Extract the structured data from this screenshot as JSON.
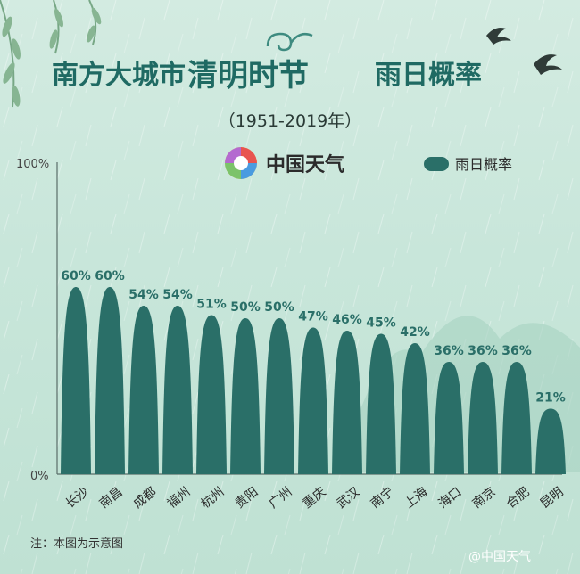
{
  "title_parts": {
    "a": "南方大城市",
    "b": "清明时节",
    "c": "雨日概率"
  },
  "subtitle": "（1951-2019年）",
  "brand": "中国天气",
  "legend_label": "雨日概率",
  "footnote": "注：本图为示意图",
  "watermark": "@中国天气",
  "colors": {
    "bar": "#2a6f68",
    "title": "#1f6a63",
    "label": "#2a6f68",
    "axis": "#5a6e69"
  },
  "chart_data": {
    "type": "bar",
    "categories": [
      "长沙",
      "南昌",
      "成都",
      "福州",
      "杭州",
      "贵阳",
      "广州",
      "重庆",
      "武汉",
      "南宁",
      "上海",
      "海口",
      "南京",
      "合肥",
      "昆明"
    ],
    "values": [
      60,
      60,
      54,
      54,
      51,
      50,
      50,
      47,
      46,
      45,
      42,
      36,
      36,
      36,
      21
    ],
    "value_labels": [
      "60%",
      "60%",
      "54%",
      "54%",
      "51%",
      "50%",
      "50%",
      "47%",
      "46%",
      "45%",
      "42%",
      "36%",
      "36%",
      "36%",
      "21%"
    ],
    "y_tick_labels": [
      "100%",
      "0%"
    ],
    "ylim": [
      0,
      100
    ],
    "legend": "top-right",
    "grid": false
  }
}
